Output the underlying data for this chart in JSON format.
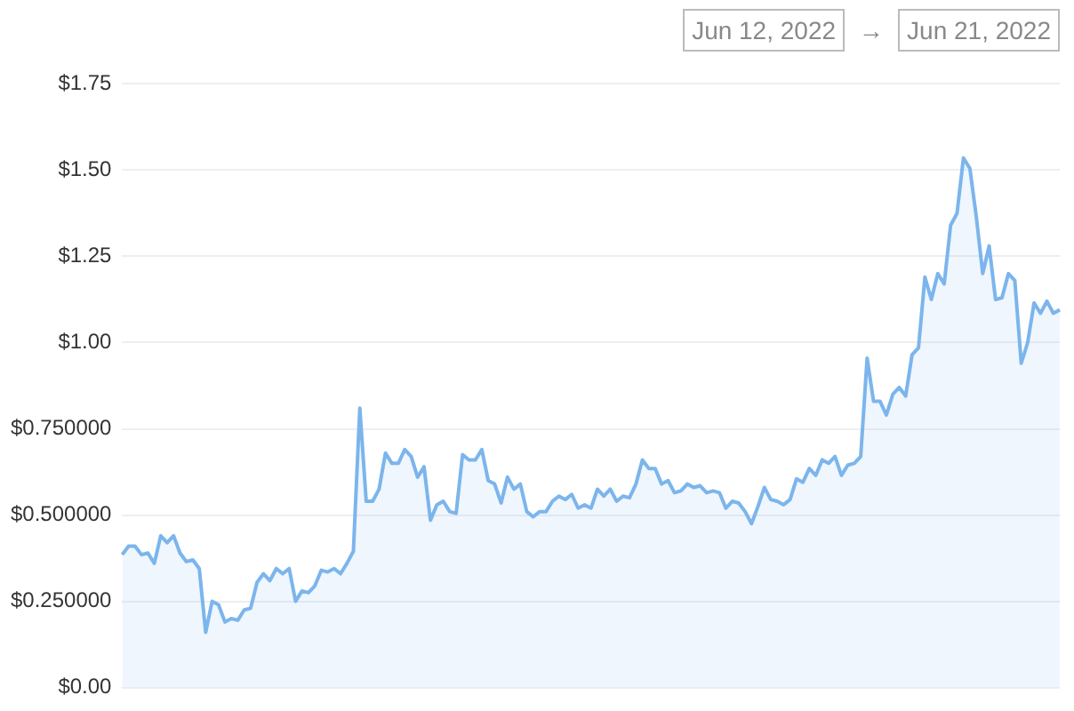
{
  "chart_data": {
    "type": "area",
    "annotations": [
      "Jun 12, 2022",
      "→",
      "Jun 21, 2022"
    ],
    "categories": [
      null,
      null,
      null,
      null,
      null,
      null,
      null,
      null,
      null,
      null,
      null,
      null,
      null,
      null,
      null,
      null,
      null,
      null,
      null,
      null,
      null,
      null,
      null,
      null,
      null,
      null,
      null,
      null,
      null,
      null,
      null,
      null,
      null,
      null,
      null,
      null,
      null,
      null,
      null,
      null,
      null,
      null,
      null,
      null,
      null,
      null,
      null,
      null,
      null,
      null,
      null,
      null,
      null,
      null,
      null,
      null,
      null,
      null,
      null,
      null,
      null,
      null,
      null,
      null,
      null,
      null,
      null,
      null,
      null,
      null,
      null,
      null,
      null,
      null,
      null,
      null,
      null,
      null,
      null,
      null,
      null,
      null,
      null,
      null,
      null,
      null,
      null,
      null,
      null,
      null,
      null,
      null,
      null,
      null,
      null,
      null,
      null,
      null,
      null,
      null,
      null,
      null,
      null,
      null,
      null,
      null,
      null,
      null,
      null,
      null,
      null,
      null,
      null,
      null,
      null,
      null,
      null,
      null,
      null,
      null,
      null,
      null,
      null,
      null,
      null,
      null,
      null,
      null,
      null,
      null,
      null,
      null,
      null,
      null,
      null,
      null,
      null,
      null,
      null,
      null,
      null,
      null,
      null,
      null,
      null,
      null,
      null
    ],
    "series": [
      {
        "color": "#7cb5ec",
        "values": [
          0.385,
          0.41,
          0.41,
          0.385,
          0.39,
          0.36,
          0.44,
          0.42,
          0.44,
          0.39,
          0.365,
          0.37,
          0.345,
          0.16,
          0.25,
          0.24,
          0.19,
          0.2,
          0.195,
          0.225,
          0.23,
          0.305,
          0.33,
          0.31,
          0.345,
          0.33,
          0.345,
          0.25,
          0.28,
          0.275,
          0.295,
          0.34,
          0.335,
          0.345,
          0.33,
          0.36,
          0.395,
          0.81,
          0.54,
          0.54,
          0.575,
          0.68,
          0.65,
          0.65,
          0.69,
          0.67,
          0.61,
          0.64,
          0.485,
          0.53,
          0.54,
          0.51,
          0.505,
          0.675,
          0.66,
          0.66,
          0.69,
          0.6,
          0.59,
          0.535,
          0.61,
          0.575,
          0.59,
          0.51,
          0.495,
          0.51,
          0.51,
          0.54,
          0.555,
          0.545,
          0.56,
          0.52,
          0.53,
          0.52,
          0.575,
          0.555,
          0.575,
          0.54,
          0.555,
          0.55,
          0.59,
          0.66,
          0.635,
          0.635,
          0.59,
          0.6,
          0.565,
          0.57,
          0.59,
          0.58,
          0.585,
          0.565,
          0.57,
          0.565,
          0.52,
          0.54,
          0.535,
          0.51,
          0.475,
          0.525,
          0.58,
          0.545,
          0.54,
          0.53,
          0.545,
          0.605,
          0.595,
          0.635,
          0.615,
          0.66,
          0.65,
          0.67,
          0.615,
          0.645,
          0.65,
          0.67,
          0.955,
          0.83,
          0.83,
          0.79,
          0.85,
          0.87,
          0.845,
          0.965,
          0.985,
          1.19,
          1.125,
          1.2,
          1.17,
          1.34,
          1.375,
          1.535,
          1.505,
          1.365,
          1.2,
          1.28,
          1.125,
          1.13,
          1.2,
          1.18,
          0.94,
          1.0,
          1.115,
          1.085,
          1.12,
          1.085,
          1.095
        ]
      }
    ],
    "ylim": [
      0,
      1.75
    ],
    "yticks": [
      {
        "value": 0,
        "label": "$0.00"
      },
      {
        "value": 0.25,
        "label": "$0.250000"
      },
      {
        "value": 0.5,
        "label": "$0.500000"
      },
      {
        "value": 0.75,
        "label": "$0.750000"
      },
      {
        "value": 1,
        "label": "$1.00"
      },
      {
        "value": 1.25,
        "label": "$1.25"
      },
      {
        "value": 1.5,
        "label": "$1.50"
      },
      {
        "value": 1.75,
        "label": "$1.75"
      }
    ],
    "grid": "y",
    "marker": "none",
    "legend": false,
    "tick_labels": "y"
  }
}
